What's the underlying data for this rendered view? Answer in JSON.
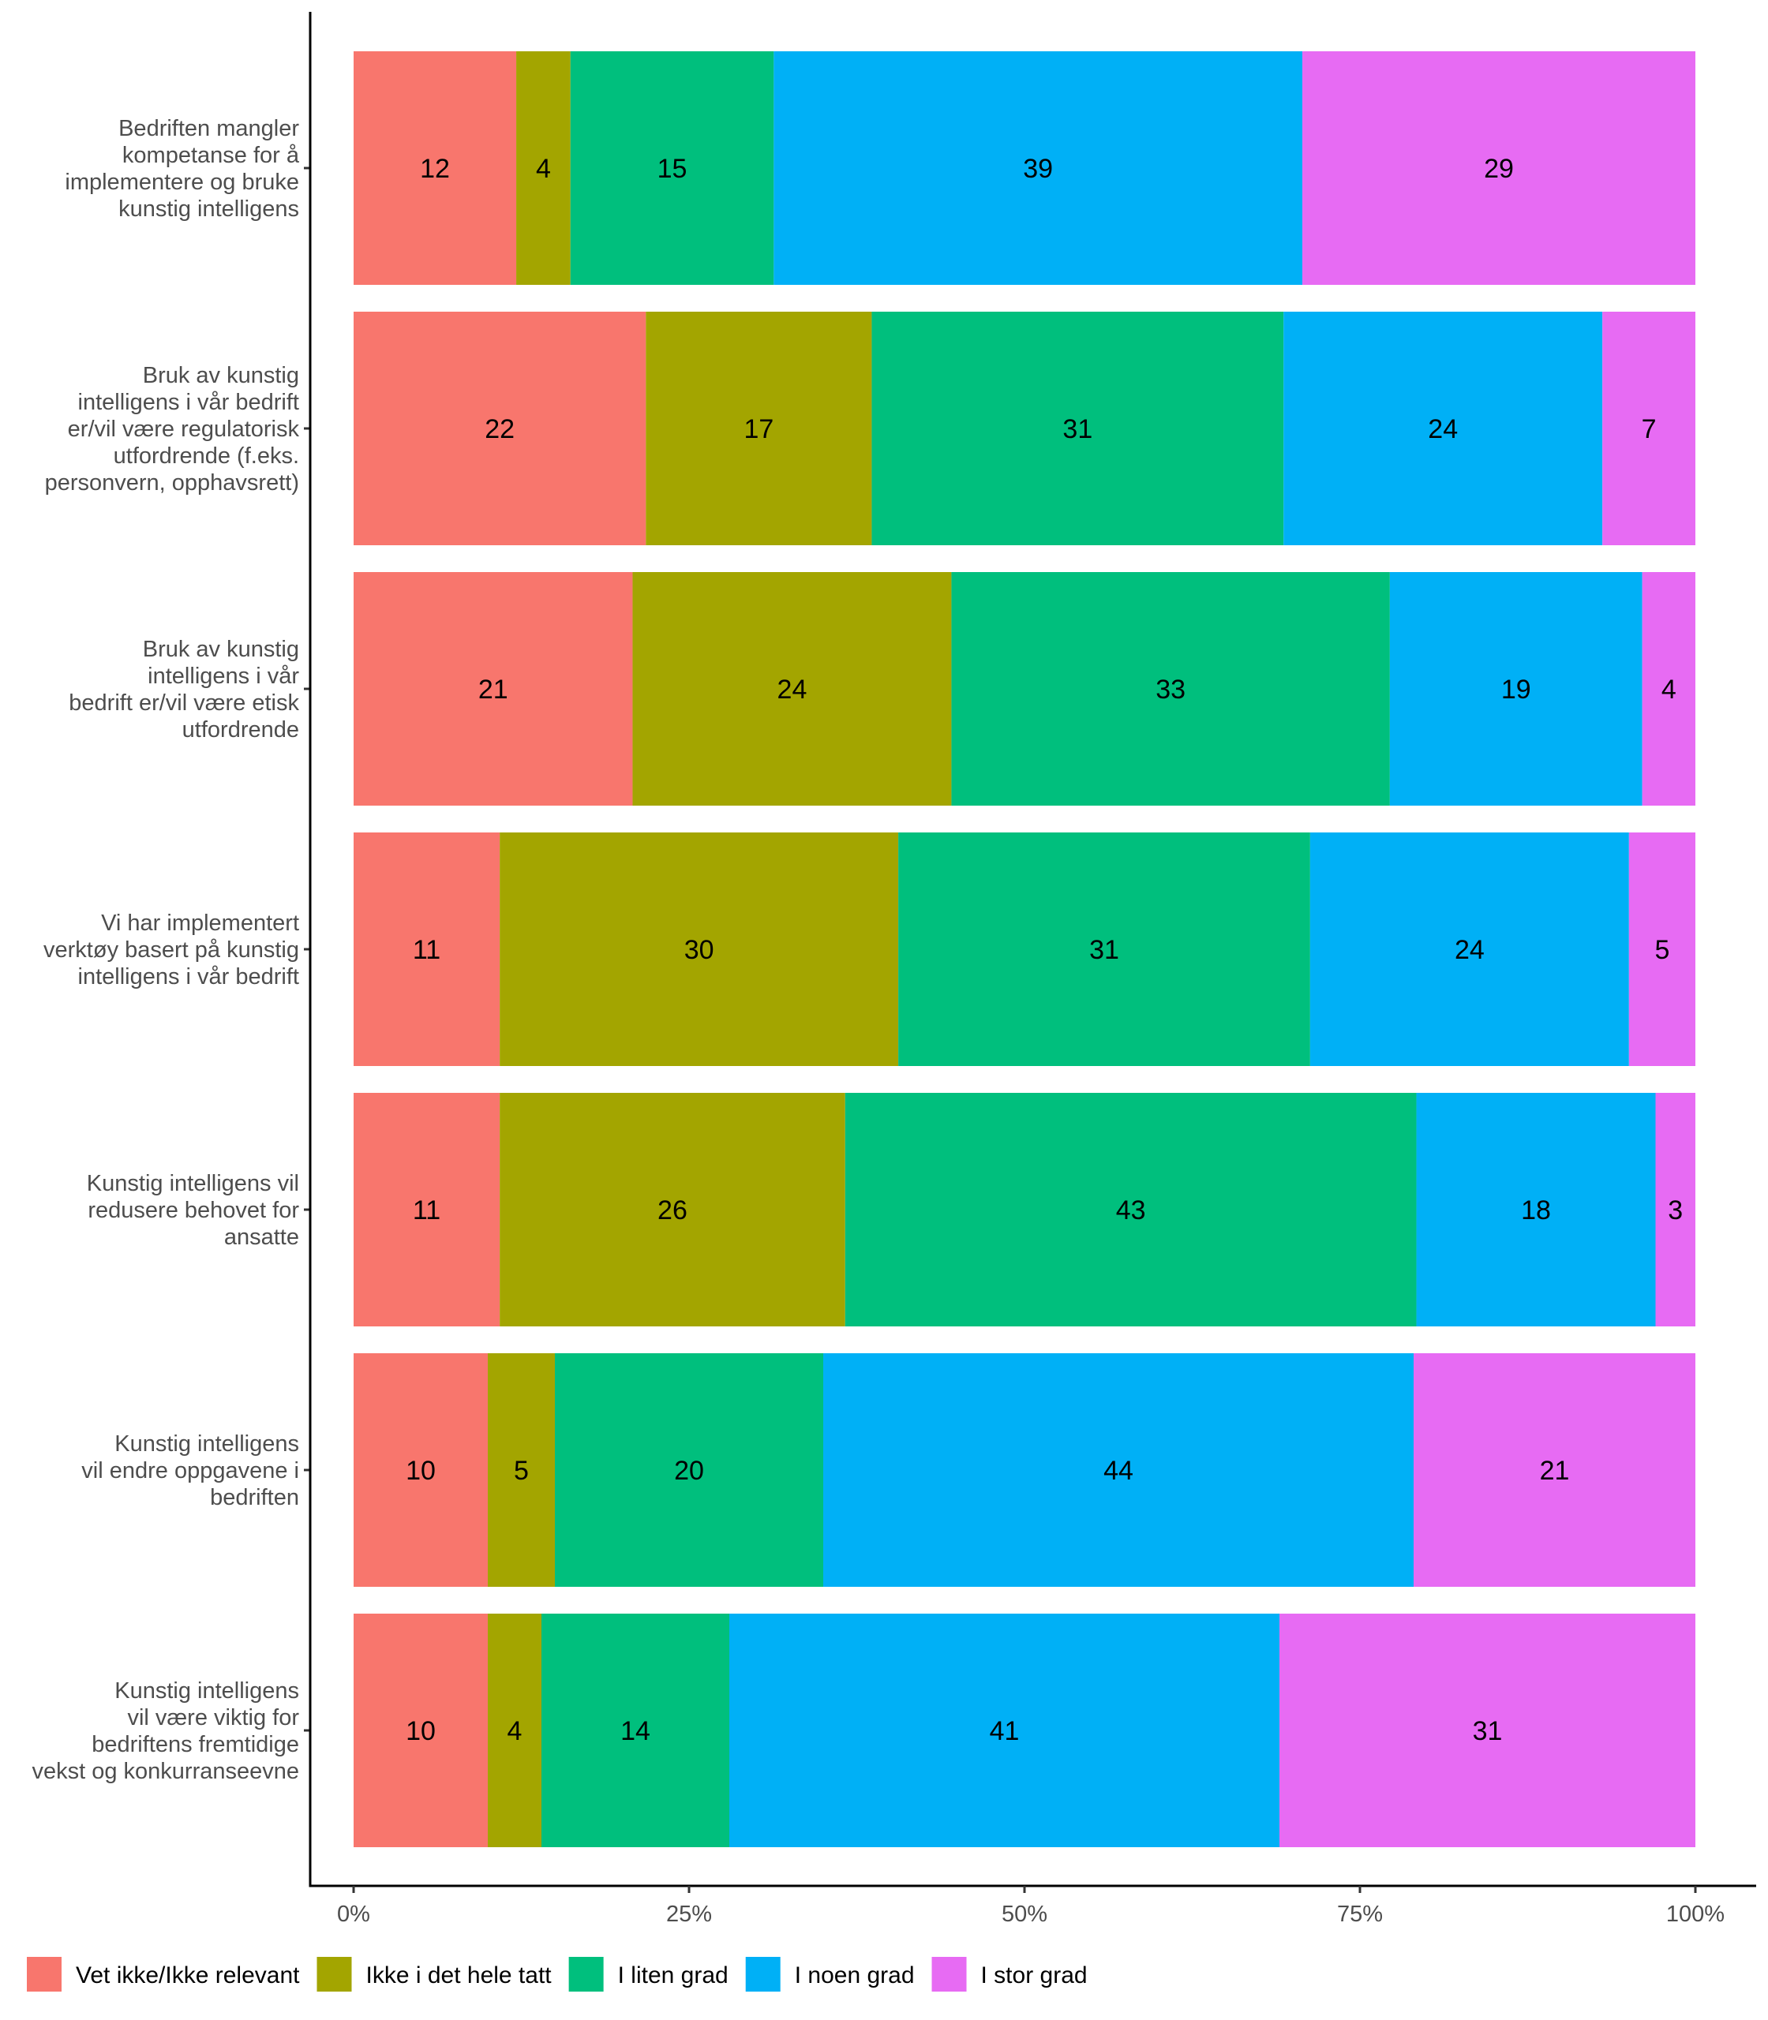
{
  "chart_data": {
    "type": "bar",
    "orientation": "horizontal",
    "stacked": true,
    "percent": true,
    "title": "",
    "xlabel": "",
    "ylabel": "",
    "xlim": [
      0,
      100
    ],
    "x_ticks": [
      "0%",
      "25%",
      "50%",
      "75%",
      "100%"
    ],
    "x_tick_values": [
      0,
      25,
      50,
      75,
      100
    ],
    "grid": false,
    "legend_position": "bottom",
    "categories": [
      "Bedriften mangler kompetanse for å implementere og bruke kunstig intelligens",
      "Bruk av kunstig intelligens i vår bedrift er/vil være regulatorisk utfordrende (f.eks. personvern, opphavsrett)",
      "Bruk av kunstig intelligens i vår bedrift er/vil være etisk utfordrende",
      "Vi har implementert verktøy basert på kunstig intelligens i vår bedrift",
      "Kunstig intelligens vil redusere behovet for ansatte",
      "Kunstig intelligens vil endre oppgavene i bedriften",
      "Kunstig intelligens vil være viktig for bedriftens fremtidige vekst og konkurranseevne"
    ],
    "category_lines": [
      [
        "Bedriften mangler",
        "kompetanse for å",
        "implementere og bruke",
        "kunstig intelligens"
      ],
      [
        "Bruk av kunstig",
        "intelligens i vår bedrift",
        "er/vil være regulatorisk",
        "utfordrende (f.eks.",
        "personvern, opphavsrett)"
      ],
      [
        "Bruk av kunstig",
        "intelligens i vår",
        "bedrift er/vil være etisk",
        "utfordrende"
      ],
      [
        "Vi har implementert",
        "verktøy basert på kunstig",
        "intelligens i vår bedrift"
      ],
      [
        "Kunstig intelligens vil",
        "redusere behovet for",
        "ansatte"
      ],
      [
        "Kunstig intelligens",
        "vil endre oppgavene i",
        "bedriften"
      ],
      [
        "Kunstig intelligens",
        "vil være viktig for",
        "bedriftens fremtidige",
        "vekst og konkurranseevne"
      ]
    ],
    "series": [
      {
        "name": "Vet ikke/Ikke relevant",
        "color": "#F8766D",
        "values": [
          12,
          22,
          21,
          11,
          11,
          10,
          10
        ]
      },
      {
        "name": "Ikke i det hele tatt",
        "color": "#A3A500",
        "values": [
          4,
          17,
          24,
          30,
          26,
          5,
          4
        ]
      },
      {
        "name": "I liten grad",
        "color": "#00BF7D",
        "values": [
          15,
          31,
          33,
          31,
          43,
          20,
          14
        ]
      },
      {
        "name": "I noen grad",
        "color": "#00B0F6",
        "values": [
          39,
          24,
          19,
          24,
          18,
          44,
          41
        ]
      },
      {
        "name": "I stor grad",
        "color": "#E76BF3",
        "values": [
          29,
          7,
          4,
          5,
          3,
          21,
          31
        ]
      }
    ]
  }
}
